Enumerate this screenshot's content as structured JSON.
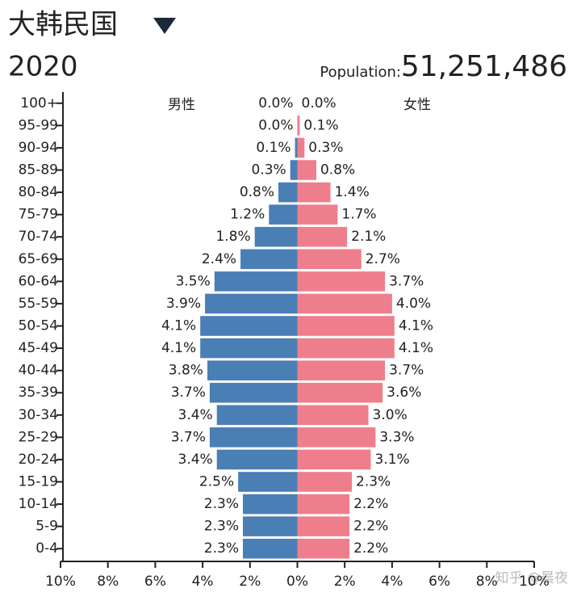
{
  "chart_data": {
    "type": "pyramid",
    "title": "大韩民国",
    "subtitle": "2020",
    "population_label": "Population:",
    "population": "51,251,486",
    "watermark": "知乎 @晨夜",
    "categories": [
      "100+",
      "95-99",
      "90-94",
      "85-89",
      "80-84",
      "75-79",
      "70-74",
      "65-69",
      "60-64",
      "55-59",
      "50-54",
      "45-49",
      "40-44",
      "35-39",
      "30-34",
      "25-29",
      "20-24",
      "15-19",
      "10-14",
      "5-9",
      "0-4"
    ],
    "series": [
      {
        "name": "男性",
        "color": "#4a7fb5",
        "side": "left",
        "values": [
          0.0,
          0.0,
          0.1,
          0.3,
          0.8,
          1.2,
          1.8,
          2.4,
          3.5,
          3.9,
          4.1,
          4.1,
          3.8,
          3.7,
          3.4,
          3.7,
          3.4,
          2.5,
          2.3,
          2.3,
          2.3
        ],
        "value_labels": [
          "0.0%",
          "0.0%",
          "0.1%",
          "0.3%",
          "0.8%",
          "1.2%",
          "1.8%",
          "2.4%",
          "3.5%",
          "3.9%",
          "4.1%",
          "4.1%",
          "3.8%",
          "3.7%",
          "3.4%",
          "3.7%",
          "3.4%",
          "2.5%",
          "2.3%",
          "2.3%",
          "2.3%"
        ]
      },
      {
        "name": "女性",
        "color": "#ef7e8d",
        "side": "right",
        "values": [
          0.0,
          0.1,
          0.3,
          0.8,
          1.4,
          1.7,
          2.1,
          2.7,
          3.7,
          4.0,
          4.1,
          4.1,
          3.7,
          3.6,
          3.0,
          3.3,
          3.1,
          2.3,
          2.2,
          2.2,
          2.2
        ],
        "value_labels": [
          "0.0%",
          "0.1%",
          "0.3%",
          "0.8%",
          "1.4%",
          "1.7%",
          "2.1%",
          "2.7%",
          "3.7%",
          "4.0%",
          "4.1%",
          "4.1%",
          "3.7%",
          "3.6%",
          "3.0%",
          "3.3%",
          "3.1%",
          "2.3%",
          "2.2%",
          "2.2%",
          "2.2%"
        ]
      }
    ],
    "xlim": [
      -10,
      10
    ],
    "xticks": [
      {
        "value": -10,
        "label": "10%"
      },
      {
        "value": -8,
        "label": "8%"
      },
      {
        "value": -6,
        "label": "6%"
      },
      {
        "value": -4,
        "label": "4%"
      },
      {
        "value": -2,
        "label": "2%"
      },
      {
        "value": 0,
        "label": "0%"
      },
      {
        "value": 2,
        "label": "2%"
      },
      {
        "value": 4,
        "label": "4%"
      },
      {
        "value": 6,
        "label": "6%"
      },
      {
        "value": 8,
        "label": "8%"
      },
      {
        "value": 10,
        "label": "10%"
      }
    ]
  }
}
